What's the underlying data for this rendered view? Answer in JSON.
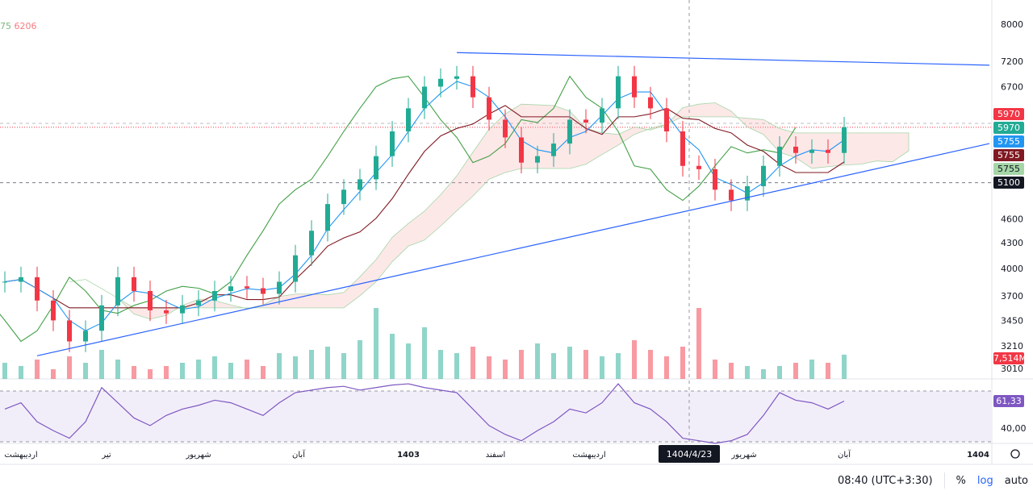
{
  "legend": {
    "a": "75",
    "b": "6206"
  },
  "chart_data": {
    "type": "candlestick",
    "scale": "log",
    "ylim": [
      2950,
      8300
    ],
    "yticks": [
      8000,
      7200,
      6700,
      4600,
      4300,
      4000,
      3700,
      3450,
      3210,
      3010
    ],
    "closes": [
      3850,
      3900,
      3650,
      3450,
      3250,
      3350,
      3600,
      3900,
      3750,
      3550,
      3520,
      3600,
      3650,
      3750,
      3800,
      3780,
      3720,
      3850,
      4150,
      4450,
      4800,
      5000,
      5150,
      5500,
      5900,
      6300,
      6700,
      6850,
      6900,
      6500,
      6100,
      5800,
      5400,
      5500,
      5700,
      6100,
      6050,
      6300,
      6900,
      6500,
      6300,
      5900,
      5350,
      5300,
      5000,
      4850,
      5050,
      5350,
      5650,
      5550,
      5600,
      5550,
      5970
    ],
    "volumes_m": [
      5,
      4,
      6,
      3,
      7,
      5,
      9,
      6,
      4,
      3,
      4,
      5,
      6,
      7,
      5,
      6,
      4,
      8,
      7,
      9,
      10,
      8,
      12,
      22,
      14,
      11,
      16,
      9,
      8,
      10,
      7,
      6,
      9,
      11,
      8,
      10,
      9,
      7,
      8,
      12,
      9,
      7,
      10,
      22,
      6,
      5,
      4,
      3,
      4,
      5,
      6,
      5,
      7.514
    ],
    "rsi": [
      55,
      60,
      45,
      38,
      32,
      45,
      72,
      60,
      48,
      42,
      50,
      55,
      58,
      62,
      60,
      55,
      50,
      60,
      68,
      70,
      72,
      73,
      70,
      72,
      74,
      75,
      72,
      70,
      68,
      55,
      42,
      35,
      30,
      38,
      45,
      55,
      52,
      60,
      75,
      60,
      55,
      45,
      32,
      30,
      28,
      30,
      35,
      50,
      68,
      62,
      60,
      55,
      61.33
    ],
    "rsi_ticks": [
      40
    ],
    "trendlines": [
      {
        "from": [
          28,
          7380
        ],
        "to": [
          61,
          7120
        ]
      },
      {
        "from": [
          2,
          3120
        ],
        "to": [
          61,
          5700
        ]
      }
    ],
    "price_tags": [
      {
        "value": "5970",
        "color": "#f23645"
      },
      {
        "value": "5970",
        "color": "#22ab94"
      },
      {
        "value": "5755",
        "color": "#2196f3"
      },
      {
        "value": "5755",
        "color": "#801922"
      },
      {
        "value": "5755",
        "color": "#a5d6a7",
        "text": "#131722"
      },
      {
        "value": "5100",
        "color": "#131722"
      }
    ],
    "volume_tag": "7,514M",
    "rsi_tag": "61,33",
    "x_labels": [
      {
        "t": "اردیبهشت",
        "i": 1
      },
      {
        "t": "تیر",
        "i": 6.3
      },
      {
        "t": "شهریور",
        "i": 12
      },
      {
        "t": "آبان",
        "i": 18.2
      },
      {
        "t": "1403",
        "i": 25,
        "bold": true
      },
      {
        "t": "اسفند",
        "i": 30.4
      },
      {
        "t": "اردیبهشت",
        "i": 36.2
      },
      {
        "t": "شهریور",
        "i": 45.8
      },
      {
        "t": "آبان",
        "i": 52
      },
      {
        "t": "1404",
        "i": 60.3,
        "bold": true
      }
    ],
    "crosshair": {
      "label": "1404/4/23",
      "i": 42.4
    }
  },
  "footer": {
    "time": "08:40 (UTC+3:30)",
    "percent": "%",
    "log": "log",
    "auto": "auto"
  }
}
